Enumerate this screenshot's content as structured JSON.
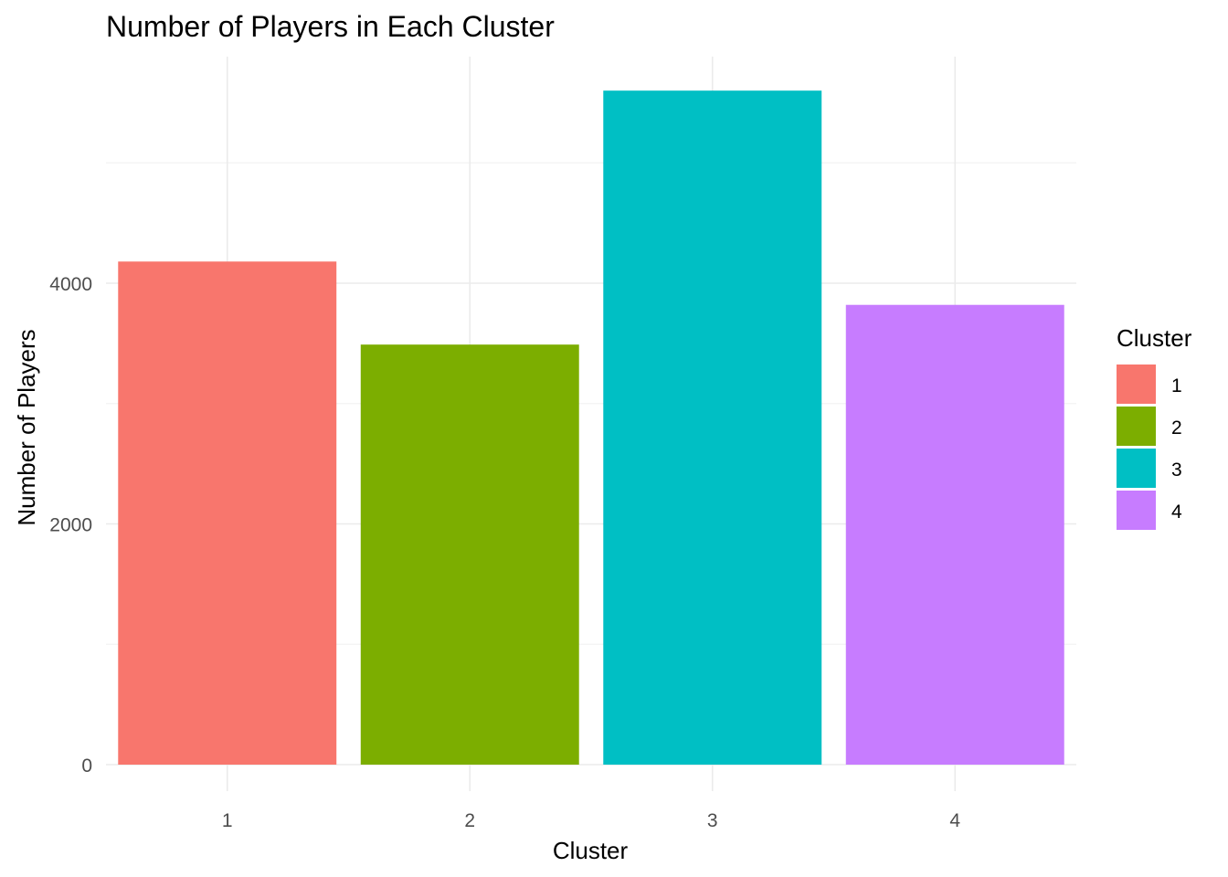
{
  "chart_data": {
    "type": "bar",
    "title": "Number of Players in Each Cluster",
    "xlabel": "Cluster",
    "ylabel": "Number of Players",
    "categories": [
      "1",
      "2",
      "3",
      "4"
    ],
    "values": [
      4180,
      3490,
      5600,
      3820
    ],
    "colors": [
      "#F8766D",
      "#7CAE00",
      "#00BFC4",
      "#C77CFF"
    ],
    "ylim": [
      0,
      5880
    ],
    "yticks": [
      0,
      2000,
      4000
    ],
    "grid": true,
    "legend": {
      "title": "Cluster",
      "position": "right",
      "items": [
        "1",
        "2",
        "3",
        "4"
      ]
    }
  }
}
